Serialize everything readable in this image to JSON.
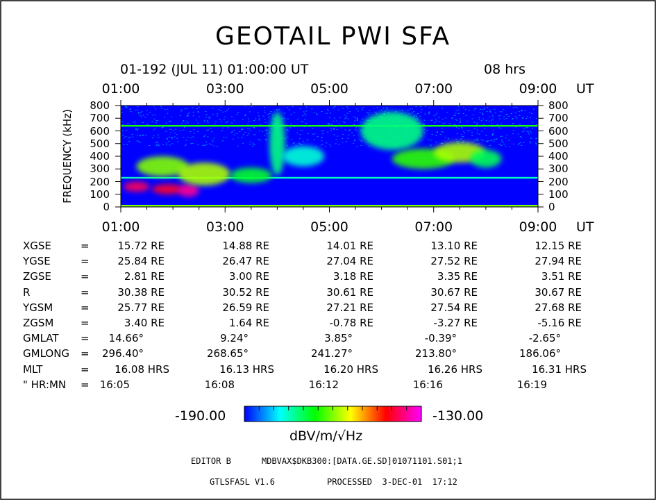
{
  "title": "GEOTAIL PWI SFA",
  "subtitle_date": "01-192 (JUL 11) 01:00:00 UT",
  "subtitle_duration": "08 hrs",
  "ut_label": "UT",
  "ylabel": "FREQUENCY (kHz)",
  "chart_data": {
    "type": "heatmap",
    "title": "GEOTAIL PWI SFA",
    "xlabel": "UT",
    "ylabel": "FREQUENCY (kHz)",
    "x_ticks": [
      "01:00",
      "03:00",
      "05:00",
      "07:00",
      "09:00"
    ],
    "xlim_hours": [
      1,
      9
    ],
    "y_ticks": [
      800,
      700,
      600,
      500,
      400,
      300,
      200,
      100,
      0
    ],
    "ylim": [
      0,
      800
    ],
    "color_scale": {
      "min_label": "-190.00",
      "max_label": "-130.00",
      "min": -190,
      "max": -130,
      "unit": "dBV/m/√Hz",
      "colors": [
        "#0000ff",
        "#00ffff",
        "#00ff00",
        "#ffff00",
        "#ff0000",
        "#ff00ff"
      ]
    },
    "features": [
      {
        "kind": "band",
        "ut_start": 1.0,
        "ut_end": 9.0,
        "freq_center_khz": 640,
        "intensity_dbv": -165
      },
      {
        "kind": "band",
        "ut_start": 1.0,
        "ut_end": 9.0,
        "freq_center_khz": 230,
        "intensity_dbv": -175
      },
      {
        "kind": "band",
        "ut_start": 1.0,
        "ut_end": 9.0,
        "freq_center_khz": 10,
        "intensity_dbv": -160
      },
      {
        "kind": "blob",
        "ut_center": 1.3,
        "freq_center_khz": 160,
        "ut_halfwidth": 0.25,
        "freq_halfwidth": 40,
        "intensity_dbv": -138
      },
      {
        "kind": "blob",
        "ut_center": 1.9,
        "freq_center_khz": 140,
        "ut_halfwidth": 0.3,
        "freq_halfwidth": 40,
        "intensity_dbv": -140
      },
      {
        "kind": "blob",
        "ut_center": 2.3,
        "freq_center_khz": 130,
        "ut_halfwidth": 0.2,
        "freq_halfwidth": 50,
        "intensity_dbv": -135
      },
      {
        "kind": "blob",
        "ut_center": 1.8,
        "freq_center_khz": 320,
        "ut_halfwidth": 0.5,
        "freq_halfwidth": 80,
        "intensity_dbv": -160
      },
      {
        "kind": "blob",
        "ut_center": 2.6,
        "freq_center_khz": 260,
        "ut_halfwidth": 0.5,
        "freq_halfwidth": 90,
        "intensity_dbv": -158
      },
      {
        "kind": "blob",
        "ut_center": 3.5,
        "freq_center_khz": 250,
        "ut_halfwidth": 0.4,
        "freq_halfwidth": 60,
        "intensity_dbv": -168
      },
      {
        "kind": "blob",
        "ut_center": 4.0,
        "freq_center_khz": 500,
        "ut_halfwidth": 0.15,
        "freq_halfwidth": 250,
        "intensity_dbv": -172
      },
      {
        "kind": "blob",
        "ut_center": 4.5,
        "freq_center_khz": 400,
        "ut_halfwidth": 0.4,
        "freq_halfwidth": 80,
        "intensity_dbv": -176
      },
      {
        "kind": "blob",
        "ut_center": 6.2,
        "freq_center_khz": 600,
        "ut_halfwidth": 0.6,
        "freq_halfwidth": 150,
        "intensity_dbv": -172
      },
      {
        "kind": "blob",
        "ut_center": 6.8,
        "freq_center_khz": 380,
        "ut_halfwidth": 0.6,
        "freq_halfwidth": 80,
        "intensity_dbv": -164
      },
      {
        "kind": "blob",
        "ut_center": 7.5,
        "freq_center_khz": 430,
        "ut_halfwidth": 0.5,
        "freq_halfwidth": 80,
        "intensity_dbv": -158
      },
      {
        "kind": "blob",
        "ut_center": 8.0,
        "freq_center_khz": 380,
        "ut_halfwidth": 0.3,
        "freq_halfwidth": 70,
        "intensity_dbv": -170
      }
    ]
  },
  "orbit_table": {
    "rows": [
      {
        "label": "XGSE",
        "eq": "=",
        "values": [
          "15.72 RE",
          "14.88 RE",
          "14.01 RE",
          "13.10 RE",
          "12.15 RE"
        ]
      },
      {
        "label": "YGSE",
        "eq": "=",
        "values": [
          "25.84 RE",
          "26.47 RE",
          "27.04 RE",
          "27.52 RE",
          "27.94 RE"
        ]
      },
      {
        "label": "ZGSE",
        "eq": "=",
        "values": [
          "2.81 RE",
          "3.00 RE",
          "3.18 RE",
          "3.35 RE",
          "3.51 RE"
        ]
      },
      {
        "label": "R",
        "eq": "=",
        "values": [
          "30.38 RE",
          "30.52 RE",
          "30.61 RE",
          "30.67 RE",
          "30.67 RE"
        ]
      },
      {
        "label": "YGSM",
        "eq": "=",
        "values": [
          "25.77 RE",
          "26.59 RE",
          "27.21 RE",
          "27.54 RE",
          "27.68 RE"
        ]
      },
      {
        "label": "ZGSM",
        "eq": "=",
        "values": [
          "3.40 RE",
          "1.64 RE",
          "-0.78 RE",
          "-3.27 RE",
          "-5.16 RE"
        ]
      },
      {
        "label": "GMLAT",
        "eq": "=",
        "values": [
          "14.66°",
          "9.24°",
          "3.85°",
          "-0.39°",
          "-2.65°"
        ]
      },
      {
        "label": "GMLONG",
        "eq": "=",
        "values": [
          "296.40°",
          "268.65°",
          "241.27°",
          "213.80°",
          "186.06°"
        ]
      },
      {
        "label": "MLT",
        "eq": "=",
        "values": [
          "16.08 HRS",
          "16.13 HRS",
          "16.20 HRS",
          "16.26 HRS",
          "16.31 HRS"
        ]
      },
      {
        "label": "\" HR:MN",
        "eq": "=",
        "values": [
          "16:05",
          "16:08",
          "16:12",
          "16:16",
          "16:19"
        ]
      }
    ]
  },
  "footer": {
    "editor": "EDITOR B",
    "path": "MDBVAX$DKB300:[DATA.GE.SD]01071101.S01;1",
    "program": "GTLSFA5L V1.6",
    "processed": "PROCESSED  3-DEC-01  17:12"
  }
}
